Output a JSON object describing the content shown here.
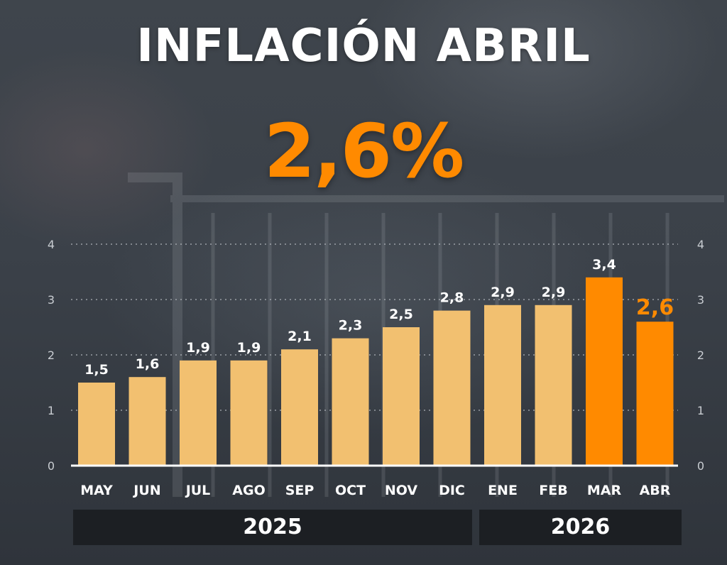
{
  "header": {
    "title": "INFLACIÓN ABRIL",
    "headline_value": "2,6%"
  },
  "colors": {
    "bar_default": "#f2c070",
    "bar_highlight": "#ff8a00",
    "title": "#ffffff",
    "headline": "#ff8a00",
    "grid": "#b9bec4",
    "band": "#1c1f23"
  },
  "chart_data": {
    "type": "bar",
    "title": "",
    "xlabel": "",
    "ylabel": "",
    "ylim": [
      0,
      4
    ],
    "yticks": [
      "0",
      "1",
      "2",
      "3",
      "4"
    ],
    "y_axis_sides": [
      "left",
      "right"
    ],
    "grid": true,
    "categories": [
      "MAY",
      "JUN",
      "JUL",
      "AGO",
      "SEP",
      "OCT",
      "NOV",
      "DIC",
      "ENE",
      "FEB",
      "MAR",
      "ABR"
    ],
    "values": [
      1.5,
      1.6,
      1.9,
      1.9,
      2.1,
      2.3,
      2.5,
      2.8,
      2.9,
      2.9,
      3.4,
      2.6
    ],
    "value_labels": [
      "1,5",
      "1,6",
      "1,9",
      "1,9",
      "2,1",
      "2,3",
      "2,5",
      "2,8",
      "2,9",
      "2,9",
      "3,4",
      "2,6"
    ],
    "highlighted": [
      "MAR",
      "ABR"
    ],
    "year_groups": [
      {
        "label": "2025",
        "months": [
          "MAY",
          "JUN",
          "JUL",
          "AGO",
          "SEP",
          "OCT",
          "NOV",
          "DIC"
        ]
      },
      {
        "label": "2026",
        "months": [
          "ENE",
          "FEB",
          "MAR",
          "ABR"
        ]
      }
    ]
  }
}
